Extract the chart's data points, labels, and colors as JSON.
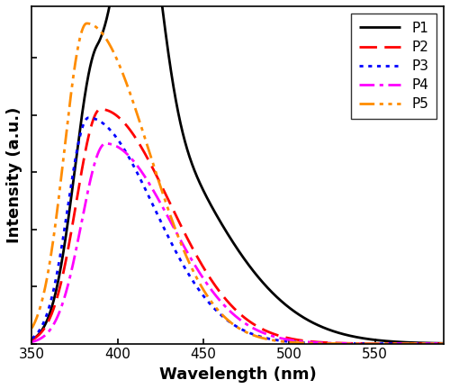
{
  "xlabel": "Wavelength (nm)",
  "ylabel": "Intensity (a.u.)",
  "xlim": [
    350,
    590
  ],
  "ylim": [
    0,
    1.18
  ],
  "xticks": [
    350,
    400,
    450,
    500,
    550
  ],
  "series": [
    {
      "label": "P1",
      "color": "#000000",
      "linestyle": "solid",
      "linewidth": 2.0,
      "peaks": [
        {
          "wl": 388,
          "amp": 1.0,
          "sig_l": 13,
          "sig_r": 55
        },
        {
          "wl": 412,
          "amp": 0.77,
          "sig_l": 10,
          "sig_r": 12
        }
      ]
    },
    {
      "label": "P2",
      "color": "#ff0000",
      "linestyle": "dashed",
      "linewidth": 2.0,
      "peaks": [
        {
          "wl": 390,
          "amp": 0.82,
          "sig_l": 14,
          "sig_r": 40
        }
      ]
    },
    {
      "label": "P3",
      "color": "#0000ff",
      "linestyle": "dotted",
      "linewidth": 2.0,
      "peaks": [
        {
          "wl": 383,
          "amp": 0.79,
          "sig_l": 12,
          "sig_r": 38
        }
      ]
    },
    {
      "label": "P4",
      "color": "#ff00ff",
      "linestyle": "dashdot",
      "linewidth": 2.0,
      "peaks": [
        {
          "wl": 393,
          "amp": 0.7,
          "sig_l": 14,
          "sig_r": 38
        }
      ]
    },
    {
      "label": "P5",
      "color": "#ff8c00",
      "linestyle": "dashdotdot",
      "linewidth": 2.0,
      "peaks": [
        {
          "wl": 382,
          "amp": 1.12,
          "sig_l": 13,
          "sig_r": 36
        }
      ]
    }
  ],
  "legend_loc": "upper right",
  "axis_fontsize": 13,
  "legend_fontsize": 11,
  "tick_labelsize": 11
}
